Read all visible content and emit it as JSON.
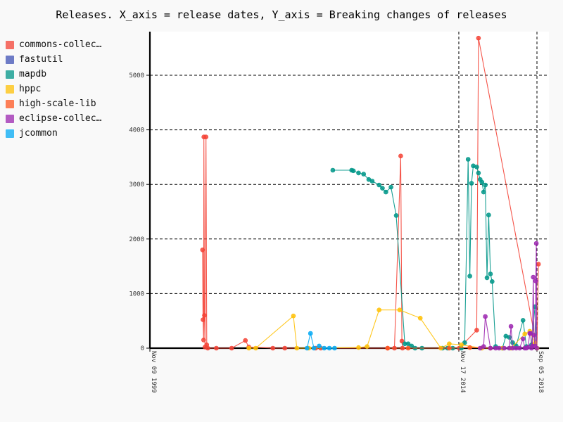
{
  "chart_data": {
    "type": "line",
    "title": "Releases. X_axis = release dates, Y_axis = Breaking changes of releases",
    "xlabel": "",
    "ylabel": "",
    "x_axis_type": "date",
    "xlim": [
      "1999-11-09",
      "2018-12-31"
    ],
    "ylim": [
      0,
      5800
    ],
    "grid": "dashed major grid",
    "legend_position": "left",
    "x_major_labels": [
      {
        "label": "Nov 09 1999",
        "date": "1999-11-09"
      },
      {
        "label": "Nov 17 2014",
        "date": "2014-11-17"
      },
      {
        "label": "Sep 05 2018",
        "date": "2018-09-05"
      }
    ],
    "y_ticks": [
      0,
      1000,
      2000,
      3000,
      4000,
      5000
    ],
    "series": [
      {
        "name": "commons-collec…",
        "color": "#f44336",
        "points": [
          [
            "2002-06-01",
            1800
          ],
          [
            "2002-06-10",
            520
          ],
          [
            "2002-06-20",
            150
          ],
          [
            "2002-06-25",
            3870
          ],
          [
            "2002-07-05",
            600
          ],
          [
            "2002-07-15",
            20
          ],
          [
            "2002-08-01",
            3870
          ],
          [
            "2002-08-15",
            60
          ],
          [
            "2002-09-01",
            0
          ],
          [
            "2003-02-01",
            0
          ],
          [
            "2003-11-01",
            0
          ],
          [
            "2004-07-01",
            140
          ],
          [
            "2004-09-01",
            20
          ],
          [
            "2005-11-01",
            0
          ],
          [
            "2006-06-01",
            0
          ],
          [
            "2007-12-01",
            0
          ],
          [
            "2008-03-01",
            0
          ],
          [
            "2011-06-01",
            0
          ],
          [
            "2011-10-01",
            0
          ],
          [
            "2012-01-20",
            3520
          ],
          [
            "2012-02-10",
            130
          ],
          [
            "2012-02-20",
            0
          ],
          [
            "2014-11-25",
            0
          ],
          [
            "2015-10-01",
            330
          ],
          [
            "2015-11-01",
            5680
          ],
          [
            "2018-09-05",
            0
          ],
          [
            "2018-10-01",
            1540
          ]
        ]
      },
      {
        "name": "fastutil",
        "color": "#3f51b5",
        "points": []
      },
      {
        "name": "mapdb",
        "color": "#009688",
        "points": [
          [
            "2008-10-01",
            3260
          ],
          [
            "2009-09-01",
            3260
          ],
          [
            "2009-10-01",
            3250
          ],
          [
            "2010-01-01",
            3210
          ],
          [
            "2010-04-01",
            3190
          ],
          [
            "2010-07-01",
            3090
          ],
          [
            "2010-09-01",
            3060
          ],
          [
            "2011-01-01",
            2990
          ],
          [
            "2011-03-01",
            2930
          ],
          [
            "2011-05-01",
            2860
          ],
          [
            "2011-08-01",
            2950
          ],
          [
            "2011-11-01",
            2430
          ],
          [
            "2012-04-01",
            80
          ],
          [
            "2012-06-01",
            80
          ],
          [
            "2012-08-01",
            40
          ],
          [
            "2012-10-01",
            0
          ],
          [
            "2013-02-01",
            0
          ],
          [
            "2014-02-01",
            0
          ],
          [
            "2014-05-01",
            0
          ],
          [
            "2014-08-01",
            0
          ],
          [
            "2015-01-01",
            0
          ],
          [
            "2015-03-01",
            100
          ],
          [
            "2015-05-01",
            3460
          ],
          [
            "2015-06-01",
            1320
          ],
          [
            "2015-07-01",
            3020
          ],
          [
            "2015-08-01",
            3340
          ],
          [
            "2015-10-01",
            3320
          ],
          [
            "2015-11-01",
            3210
          ],
          [
            "2015-12-01",
            3090
          ],
          [
            "2016-01-01",
            3040
          ],
          [
            "2016-02-01",
            2860
          ],
          [
            "2016-03-01",
            2990
          ],
          [
            "2016-04-01",
            1290
          ],
          [
            "2016-05-01",
            2440
          ],
          [
            "2016-06-01",
            1360
          ],
          [
            "2016-07-01",
            1220
          ],
          [
            "2016-09-01",
            30
          ],
          [
            "2017-01-01",
            0
          ],
          [
            "2017-03-01",
            220
          ],
          [
            "2017-05-01",
            200
          ],
          [
            "2017-07-01",
            100
          ],
          [
            "2017-09-01",
            40
          ],
          [
            "2018-01-01",
            510
          ],
          [
            "2018-03-01",
            30
          ],
          [
            "2018-06-01",
            60
          ],
          [
            "2018-08-01",
            760
          ],
          [
            "2018-09-01",
            0
          ]
        ]
      },
      {
        "name": "hppc",
        "color": "#ffc107",
        "points": [
          [
            "2004-09-01",
            0
          ],
          [
            "2005-01-01",
            0
          ],
          [
            "2006-11-01",
            590
          ],
          [
            "2007-01-01",
            0
          ],
          [
            "2007-08-01",
            0
          ],
          [
            "2010-01-01",
            10
          ],
          [
            "2010-06-01",
            30
          ],
          [
            "2011-01-01",
            700
          ],
          [
            "2012-01-01",
            700
          ],
          [
            "2013-01-01",
            550
          ],
          [
            "2014-01-01",
            0
          ],
          [
            "2014-06-01",
            80
          ],
          [
            "2015-01-01",
            60
          ],
          [
            "2016-01-01",
            0
          ],
          [
            "2017-01-01",
            0
          ],
          [
            "2017-06-01",
            0
          ],
          [
            "2018-02-01",
            260
          ],
          [
            "2018-05-01",
            310
          ],
          [
            "2018-08-01",
            90
          ],
          [
            "2018-09-05",
            0
          ]
        ]
      },
      {
        "name": "high-scale-lib",
        "color": "#ff5722",
        "points": [
          [
            "2011-06-01",
            0
          ],
          [
            "2012-06-01",
            0
          ],
          [
            "2014-06-01",
            0
          ],
          [
            "2015-06-01",
            10
          ],
          [
            "2016-06-01",
            0
          ]
        ]
      },
      {
        "name": "eclipse-collec…",
        "color": "#9c27b0",
        "points": [
          [
            "2015-12-01",
            0
          ],
          [
            "2016-02-01",
            30
          ],
          [
            "2016-03-01",
            580
          ],
          [
            "2016-06-01",
            0
          ],
          [
            "2016-09-01",
            0
          ],
          [
            "2016-11-01",
            0
          ],
          [
            "2017-02-01",
            0
          ],
          [
            "2017-05-01",
            0
          ],
          [
            "2017-06-01",
            400
          ],
          [
            "2017-07-01",
            0
          ],
          [
            "2017-09-01",
            0
          ],
          [
            "2017-11-01",
            0
          ],
          [
            "2018-01-01",
            170
          ],
          [
            "2018-02-01",
            0
          ],
          [
            "2018-03-01",
            0
          ],
          [
            "2018-04-01",
            20
          ],
          [
            "2018-05-01",
            270
          ],
          [
            "2018-05-15",
            270
          ],
          [
            "2018-06-01",
            0
          ],
          [
            "2018-06-15",
            40
          ],
          [
            "2018-07-01",
            1300
          ],
          [
            "2018-07-15",
            240
          ],
          [
            "2018-08-01",
            40
          ],
          [
            "2018-08-15",
            1230
          ],
          [
            "2018-08-25",
            1920
          ],
          [
            "2018-09-01",
            0
          ]
        ]
      },
      {
        "name": "jcommon",
        "color": "#03a9f4",
        "points": [
          [
            "2007-07-01",
            0
          ],
          [
            "2007-09-01",
            270
          ],
          [
            "2007-11-01",
            0
          ],
          [
            "2008-02-01",
            40
          ],
          [
            "2008-05-01",
            0
          ],
          [
            "2008-08-01",
            0
          ],
          [
            "2008-11-01",
            0
          ]
        ]
      }
    ]
  }
}
